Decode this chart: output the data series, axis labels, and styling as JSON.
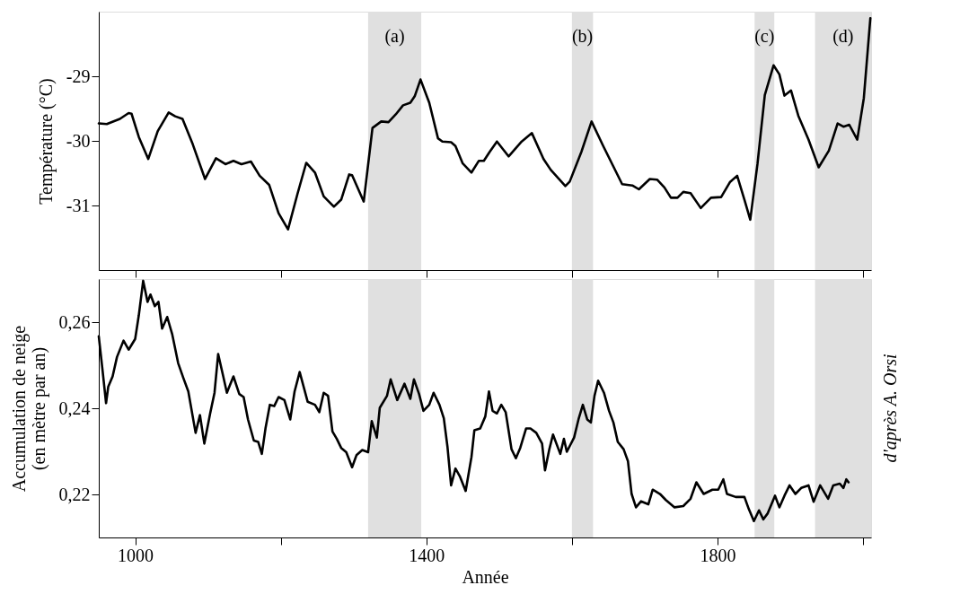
{
  "chart_data": [
    {
      "type": "line",
      "ylabel": "Température (°C)",
      "xlim": [
        950,
        2011
      ],
      "ylim": [
        -32,
        -28
      ],
      "xticks": [
        1000,
        {
          "value": 1200,
          "label": null
        },
        1400,
        {
          "value": 1600,
          "label": null
        },
        1800,
        {
          "value": 2000,
          "label": null
        }
      ],
      "yticks": [
        -31,
        -30,
        -29
      ],
      "tick_labels": "y",
      "grid": false,
      "bands": [
        {
          "axis": "x",
          "from": 1320,
          "to": 1393,
          "label": "(a)",
          "color": "#e0e0e0"
        },
        {
          "axis": "x",
          "from": 1600,
          "to": 1629,
          "label": "(b)",
          "color": "#e0e0e0"
        },
        {
          "axis": "x",
          "from": 1851,
          "to": 1878,
          "label": "(c)",
          "color": "#e0e0e0"
        },
        {
          "axis": "x",
          "from": 1934,
          "to": 2011,
          "label": "(d)",
          "color": "#e0e0e0"
        }
      ],
      "x": [
        950,
        961,
        979,
        991,
        995,
        1005,
        1018,
        1031,
        1046,
        1055,
        1065,
        1079,
        1096,
        1111,
        1124,
        1135,
        1146,
        1159,
        1171,
        1184,
        1197,
        1210,
        1223,
        1235,
        1247,
        1259,
        1273,
        1283,
        1294,
        1298,
        1314,
        1326,
        1338,
        1348,
        1358,
        1368,
        1378,
        1384,
        1392,
        1404,
        1416,
        1422,
        1434,
        1440,
        1450,
        1462,
        1472,
        1479,
        1487,
        1497,
        1513,
        1531,
        1545,
        1561,
        1571,
        1591,
        1597,
        1613,
        1627,
        1643,
        1669,
        1683,
        1692,
        1707,
        1717,
        1727,
        1736,
        1745,
        1753,
        1763,
        1777,
        1791,
        1805,
        1817,
        1827,
        1837,
        1845,
        1855,
        1865,
        1877,
        1885,
        1892,
        1901,
        1911,
        1925,
        1939,
        1953,
        1965,
        1973,
        1981,
        1992,
        2001,
        2010
      ],
      "series": [
        {
          "color": "#000000",
          "values": [
            -29.73,
            -29.74,
            -29.66,
            -29.57,
            -29.58,
            -29.94,
            -30.28,
            -29.85,
            -29.56,
            -29.62,
            -29.66,
            -30.05,
            -30.59,
            -30.27,
            -30.36,
            -30.31,
            -30.36,
            -30.32,
            -30.54,
            -30.68,
            -31.12,
            -31.37,
            -30.82,
            -30.34,
            -30.49,
            -30.86,
            -31.02,
            -30.91,
            -30.52,
            -30.53,
            -30.94,
            -29.8,
            -29.7,
            -29.71,
            -29.59,
            -29.45,
            -29.41,
            -29.31,
            -29.05,
            -29.41,
            -29.96,
            -30.01,
            -30.02,
            -30.08,
            -30.35,
            -30.49,
            -30.31,
            -30.31,
            -30.17,
            -30.01,
            -30.24,
            -30.01,
            -29.88,
            -30.28,
            -30.45,
            -30.7,
            -30.63,
            -30.17,
            -29.7,
            -30.08,
            -30.67,
            -30.69,
            -30.75,
            -30.59,
            -30.6,
            -30.72,
            -30.88,
            -30.88,
            -30.79,
            -30.81,
            -31.04,
            -30.88,
            -30.87,
            -30.64,
            -30.54,
            -30.91,
            -31.22,
            -30.35,
            -29.29,
            -28.83,
            -28.97,
            -29.3,
            -29.22,
            -29.61,
            -29.98,
            -30.41,
            -30.15,
            -29.73,
            -29.78,
            -29.75,
            -29.98,
            -29.34,
            -28.1
          ]
        }
      ]
    },
    {
      "type": "line",
      "xlabel": "Année",
      "ylabel": "Accumulation de neige (en mètre par an)",
      "xlim": [
        950,
        2011
      ],
      "ylim": [
        0.21,
        0.27
      ],
      "xticks": [
        1000,
        {
          "value": 1200,
          "label": null
        },
        1400,
        {
          "value": 1600,
          "label": null
        },
        1800,
        {
          "value": 2000,
          "label": null
        }
      ],
      "yticks": [
        {
          "value": 0.22,
          "label": "0,22"
        },
        {
          "value": 0.24,
          "label": "0,24"
        },
        {
          "value": 0.26,
          "label": "0,26"
        }
      ],
      "grid": false,
      "bands": [
        {
          "axis": "x",
          "from": 1320,
          "to": 1393,
          "color": "#e0e0e0"
        },
        {
          "axis": "x",
          "from": 1600,
          "to": 1629,
          "color": "#e0e0e0"
        },
        {
          "axis": "x",
          "from": 1851,
          "to": 1878,
          "color": "#e0e0e0"
        },
        {
          "axis": "x",
          "from": 1934,
          "to": 2011,
          "color": "#e0e0e0"
        }
      ],
      "annotations": [
        "d'après A. Orsi"
      ],
      "x": [
        950,
        955,
        960,
        963,
        969,
        975,
        984,
        991,
        1000,
        1005,
        1011,
        1017,
        1021,
        1027,
        1032,
        1037,
        1044,
        1051,
        1059,
        1066,
        1073,
        1083,
        1089,
        1095,
        1103,
        1109,
        1114,
        1121,
        1126,
        1135,
        1143,
        1149,
        1155,
        1163,
        1169,
        1174,
        1179,
        1185,
        1191,
        1197,
        1205,
        1213,
        1219,
        1226,
        1237,
        1247,
        1253,
        1259,
        1265,
        1271,
        1277,
        1283,
        1290,
        1298,
        1304,
        1312,
        1320,
        1325,
        1332,
        1336,
        1346,
        1351,
        1360,
        1370,
        1378,
        1383,
        1390,
        1396,
        1404,
        1410,
        1418,
        1424,
        1429,
        1434,
        1440,
        1446,
        1454,
        1462,
        1466,
        1474,
        1481,
        1486,
        1491,
        1497,
        1503,
        1509,
        1517,
        1523,
        1529,
        1537,
        1543,
        1551,
        1559,
        1563,
        1569,
        1574,
        1584,
        1589,
        1593,
        1603,
        1609,
        1615,
        1621,
        1626,
        1631,
        1636,
        1644,
        1651,
        1657,
        1663,
        1671,
        1677,
        1682,
        1688,
        1695,
        1705,
        1711,
        1721,
        1729,
        1741,
        1753,
        1763,
        1771,
        1781,
        1793,
        1801,
        1808,
        1813,
        1825,
        1837,
        1843,
        1850,
        1857,
        1863,
        1869,
        1879,
        1885,
        1892,
        1899,
        1907,
        1915,
        1925,
        1932,
        1941,
        1952,
        1959,
        1968,
        1973,
        1977,
        1980
      ],
      "series": [
        {
          "color": "#000000",
          "values": [
            0.2567,
            0.2491,
            0.2412,
            0.245,
            0.2474,
            0.2519,
            0.2557,
            0.2536,
            0.2561,
            0.2616,
            0.2696,
            0.2647,
            0.2664,
            0.2637,
            0.2647,
            0.2585,
            0.2612,
            0.2571,
            0.2505,
            0.2471,
            0.2439,
            0.2343,
            0.2384,
            0.2318,
            0.2388,
            0.2436,
            0.2526,
            0.2474,
            0.2436,
            0.2474,
            0.2433,
            0.2426,
            0.2374,
            0.2325,
            0.2322,
            0.2294,
            0.2353,
            0.2408,
            0.2405,
            0.2426,
            0.2419,
            0.2374,
            0.2439,
            0.2484,
            0.2415,
            0.2408,
            0.2391,
            0.2436,
            0.2429,
            0.2346,
            0.2329,
            0.2308,
            0.2298,
            0.2263,
            0.2291,
            0.2303,
            0.2298,
            0.237,
            0.2332,
            0.2401,
            0.2429,
            0.2467,
            0.2419,
            0.2457,
            0.2422,
            0.2467,
            0.2433,
            0.2394,
            0.2408,
            0.2436,
            0.2408,
            0.2377,
            0.2311,
            0.2221,
            0.226,
            0.2242,
            0.2208,
            0.2287,
            0.2349,
            0.2353,
            0.2381,
            0.2439,
            0.2394,
            0.2388,
            0.2408,
            0.2391,
            0.2305,
            0.2284,
            0.2308,
            0.2353,
            0.2353,
            0.2343,
            0.2318,
            0.2256,
            0.2305,
            0.2339,
            0.2294,
            0.2329,
            0.2299,
            0.2332,
            0.2374,
            0.2408,
            0.2374,
            0.2367,
            0.2429,
            0.2464,
            0.2436,
            0.2394,
            0.2367,
            0.2322,
            0.2305,
            0.2277,
            0.2201,
            0.217,
            0.2184,
            0.2177,
            0.2211,
            0.2201,
            0.2187,
            0.217,
            0.2173,
            0.219,
            0.2228,
            0.2201,
            0.2211,
            0.2211,
            0.2235,
            0.2201,
            0.2194,
            0.2194,
            0.2166,
            0.2138,
            0.2163,
            0.2142,
            0.2156,
            0.2197,
            0.217,
            0.2197,
            0.2221,
            0.2201,
            0.2215,
            0.2221,
            0.2183,
            0.2221,
            0.219,
            0.2221,
            0.2225,
            0.2215,
            0.2235,
            0.2228
          ]
        }
      ]
    }
  ]
}
